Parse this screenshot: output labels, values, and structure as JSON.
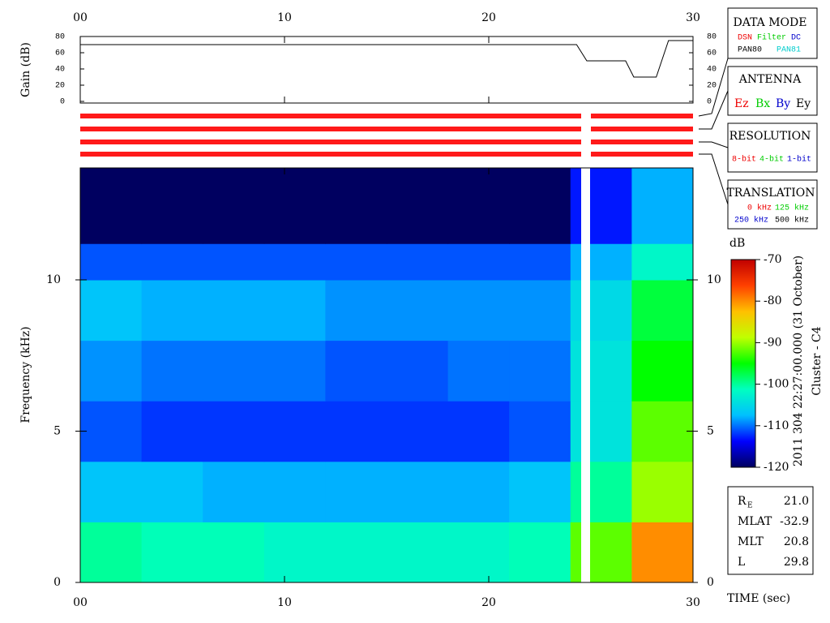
{
  "chart_data": [
    {
      "type": "line",
      "ylabel": "Gain (dB)",
      "x": [
        0,
        24.3,
        24.8,
        25,
        26.7,
        27.1,
        28.2,
        28.8,
        30
      ],
      "values": [
        70,
        70,
        50,
        50,
        50,
        30,
        30,
        75,
        75
      ],
      "color": "#000000",
      "xlim": [
        0,
        30
      ],
      "xticks": [
        {
          "value": 0,
          "label": "00"
        },
        10,
        20,
        30
      ],
      "ylim": [
        0,
        80
      ],
      "yticks": [
        0,
        20,
        40,
        60,
        80
      ]
    },
    {
      "type": "heatmap",
      "xlabel": "TIME (sec)",
      "ylabel": "Frequency (kHz)",
      "xbins": [
        0,
        3,
        6,
        9,
        12,
        15,
        18,
        21,
        24,
        27,
        30
      ],
      "ybins": [
        0,
        2,
        4,
        6,
        8,
        10,
        11.2,
        13.7
      ],
      "values": [
        [
          -100,
          -101,
          -101,
          -102,
          -102,
          -102,
          -102,
          -101,
          -92,
          -80
        ],
        [
          -107,
          -107,
          -108,
          -108,
          -108,
          -108,
          -108,
          -107,
          -100,
          -90
        ],
        [
          -111,
          -112,
          -112,
          -112,
          -112,
          -112,
          -112,
          -111,
          -104,
          -92
        ],
        [
          -109,
          -110,
          -110,
          -110,
          -111,
          -111,
          -110,
          -110,
          -104,
          -95
        ],
        [
          -107,
          -108,
          -108,
          -108,
          -109,
          -109,
          -109,
          -109,
          -105,
          -97
        ],
        [
          -111,
          -111,
          -111,
          -111,
          -111,
          -111,
          -111,
          -111,
          -108,
          -102
        ],
        [
          -120,
          -120,
          -120,
          -120,
          -120,
          -120,
          -120,
          -120,
          -113,
          -108
        ]
      ],
      "xlim": [
        0,
        30
      ],
      "xticks": [
        {
          "value": 0,
          "label": "00"
        },
        10,
        20,
        30
      ],
      "ylim": [
        0,
        13.7
      ],
      "yticks": [
        0,
        5,
        10
      ],
      "zlabel": "dB",
      "zlim": [
        -120,
        -70
      ],
      "zticks": [
        -70,
        -80,
        -90,
        -100,
        -110,
        -120
      ],
      "colormap": [
        "#000060",
        "#0000ff",
        "#00c0ff",
        "#00ffc0",
        "#00ff00",
        "#c0ff00",
        "#ffc000",
        "#ff4000",
        "#c00000"
      ],
      "caption": "2011 304 22:27:00.000 (31 October)",
      "spacecraft": "Cluster - C4"
    }
  ],
  "panels": {
    "data_mode": {
      "title": "DATA MODE",
      "items": [
        "DSN",
        "Filter",
        "DC",
        "PAN80",
        "PAN81"
      ]
    },
    "antenna": {
      "title": "ANTENNA",
      "items": [
        "Ez",
        "Bx",
        "By",
        "Ey"
      ]
    },
    "resolution": {
      "title": "RESOLUTION",
      "items": [
        "8-bit",
        "4-bit",
        "1-bit"
      ]
    },
    "translation": {
      "title": "TRANSLATION",
      "items": [
        "0 kHz",
        "125 kHz",
        "250 kHz",
        "500 kHz"
      ]
    }
  },
  "info": {
    "rows": [
      {
        "label": "R",
        "sub": "E",
        "value": "21.0"
      },
      {
        "label": "MLAT",
        "value": "-32.9"
      },
      {
        "label": "MLT",
        "value": "20.8"
      },
      {
        "label": "L",
        "value": "29.8"
      }
    ]
  }
}
